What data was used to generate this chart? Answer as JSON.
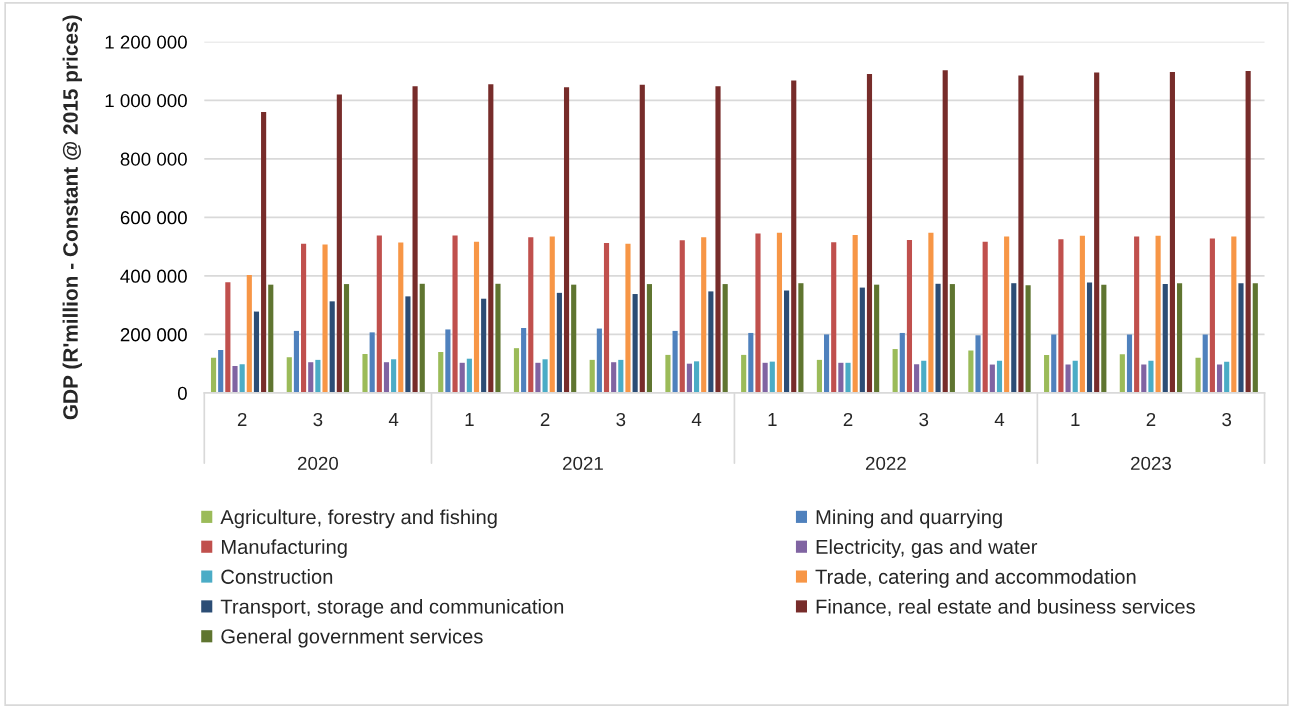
{
  "chart_data": {
    "type": "bar",
    "ylabel": "GDP (R'million - Constant @ 2015 prices)",
    "categories": [
      "2",
      "3",
      "4",
      "1",
      "2",
      "3",
      "4",
      "1",
      "2",
      "3",
      "4",
      "1",
      "2",
      "3"
    ],
    "annotations": [
      "2020",
      "2021",
      "2022",
      "2023"
    ],
    "ylim": [
      0,
      1200000
    ],
    "yticks": [
      0,
      {
        "value": 200000,
        "label": "200 000"
      },
      {
        "value": 400000,
        "label": "400 000"
      },
      {
        "value": 600000,
        "label": "600 000"
      },
      {
        "value": 800000,
        "label": "800 000"
      },
      {
        "value": 1000000,
        "label": "1 000 000"
      },
      {
        "value": 1200000,
        "label": "1 200 000"
      }
    ],
    "grid": "y",
    "legend": "bottom",
    "series": [
      {
        "name": "Agriculture, forestry and fishing",
        "color": "#9bbb59",
        "values": [
          120000,
          122000,
          133000,
          140000,
          153000,
          113000,
          130000,
          130000,
          113000,
          150000,
          145000,
          130000,
          132000,
          120000
        ]
      },
      {
        "name": "Mining and quarrying",
        "color": "#4f81bd",
        "values": [
          147000,
          212000,
          207000,
          217000,
          222000,
          220000,
          212000,
          205000,
          200000,
          205000,
          197000,
          200000,
          200000,
          200000
        ]
      },
      {
        "name": "Manufacturing",
        "color": "#c0504d",
        "values": [
          378000,
          510000,
          538000,
          538000,
          532000,
          512000,
          522000,
          545000,
          515000,
          523000,
          517000,
          525000,
          535000,
          528000
        ]
      },
      {
        "name": "Electricity, gas and water",
        "color": "#8064a2",
        "values": [
          92000,
          105000,
          105000,
          103000,
          103000,
          105000,
          100000,
          103000,
          103000,
          98000,
          97000,
          97000,
          97000,
          97000
        ]
      },
      {
        "name": "Construction",
        "color": "#4bacc6",
        "values": [
          98000,
          113000,
          115000,
          117000,
          115000,
          113000,
          108000,
          107000,
          103000,
          110000,
          110000,
          110000,
          110000,
          107000
        ]
      },
      {
        "name": "Trade, catering and accommodation",
        "color": "#f79646",
        "values": [
          403000,
          507000,
          514000,
          517000,
          535000,
          510000,
          532000,
          547000,
          540000,
          547000,
          535000,
          537000,
          537000,
          535000
        ]
      },
      {
        "name": "Transport, storage and communication",
        "color": "#2c4d75",
        "values": [
          278000,
          313000,
          330000,
          322000,
          342000,
          338000,
          347000,
          350000,
          360000,
          373000,
          375000,
          377000,
          372000,
          375000
        ]
      },
      {
        "name": "Finance, real estate and business services",
        "color": "#772c2a",
        "values": [
          960000,
          1020000,
          1048000,
          1055000,
          1045000,
          1053000,
          1048000,
          1068000,
          1090000,
          1103000,
          1085000,
          1095000,
          1097000,
          1100000
        ]
      },
      {
        "name": "General government services",
        "color": "#5f7530",
        "values": [
          370000,
          372000,
          373000,
          373000,
          370000,
          372000,
          372000,
          375000,
          370000,
          372000,
          368000,
          370000,
          375000,
          375000
        ]
      }
    ]
  }
}
